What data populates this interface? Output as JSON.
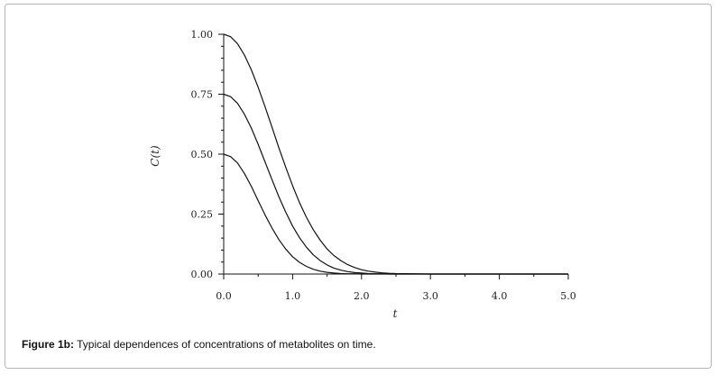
{
  "caption": {
    "label": "Figure 1b:",
    "text": "Typical dependences of concentrations of metabolites on time."
  },
  "chart_data": {
    "type": "line",
    "xlabel": "t",
    "ylabel_prefix": "C(",
    "ylabel_var": "t",
    "ylabel_suffix": ")",
    "xlim": [
      0,
      5
    ],
    "ylim": [
      0,
      1
    ],
    "xticks": [
      0,
      1,
      2,
      3,
      4,
      5
    ],
    "xtick_labels": [
      "0.0",
      "1.0",
      "2.0",
      "3.0",
      "4.0",
      "5.0"
    ],
    "yticks": [
      0,
      0.25,
      0.5,
      0.75,
      1
    ],
    "ytick_labels": [
      "0.00",
      "0.25",
      "0.50",
      "0.75",
      "1.00"
    ],
    "grid": false,
    "line_color": "#111111",
    "x": [
      0,
      0.1,
      0.2,
      0.3,
      0.4,
      0.5,
      0.6,
      0.7,
      0.8,
      0.9,
      1.0,
      1.1,
      1.2,
      1.3,
      1.4,
      1.5,
      1.6,
      1.7,
      1.8,
      1.9,
      2.0,
      2.1,
      2.2,
      2.3,
      2.4,
      2.5,
      3.0,
      3.5,
      4.0,
      4.5,
      5.0
    ],
    "series": [
      {
        "values": [
          1.0,
          0.99,
          0.961,
          0.914,
          0.852,
          0.779,
          0.698,
          0.613,
          0.527,
          0.445,
          0.368,
          0.298,
          0.237,
          0.185,
          0.141,
          0.105,
          0.077,
          0.056,
          0.039,
          0.027,
          0.018,
          0.012,
          0.008,
          0.005,
          0.003,
          0.002,
          0.0,
          0.0,
          0.0,
          0.0,
          0.0
        ]
      },
      {
        "values": [
          0.75,
          0.74,
          0.712,
          0.667,
          0.609,
          0.541,
          0.468,
          0.394,
          0.323,
          0.258,
          0.2,
          0.152,
          0.112,
          0.08,
          0.056,
          0.038,
          0.025,
          0.016,
          0.01,
          0.006,
          0.004,
          0.002,
          0.001,
          0.001,
          0.0,
          0.0,
          0.0,
          0.0,
          0.0,
          0.0,
          0.0
        ]
      },
      {
        "values": [
          0.5,
          0.49,
          0.463,
          0.42,
          0.366,
          0.306,
          0.247,
          0.192,
          0.144,
          0.104,
          0.072,
          0.049,
          0.032,
          0.02,
          0.012,
          0.007,
          0.004,
          0.002,
          0.001,
          0.001,
          0.0,
          0.0,
          0.0,
          0.0,
          0.0,
          0.0,
          0.0,
          0.0,
          0.0,
          0.0,
          0.0
        ]
      }
    ]
  }
}
